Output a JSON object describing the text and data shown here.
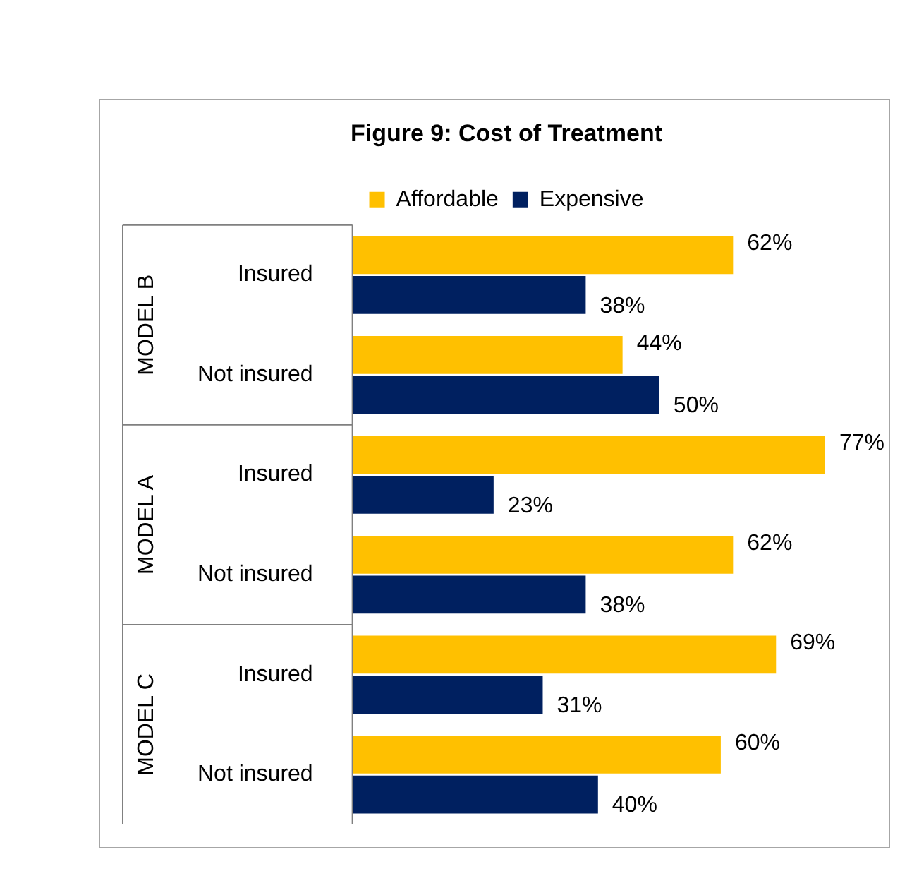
{
  "chart_data": {
    "type": "bar",
    "orientation": "horizontal",
    "title": "Figure 9: Cost of Treatment",
    "categories": [
      "Insured",
      "Not insured",
      "Insured",
      "Not insured",
      "Insured",
      "Not insured"
    ],
    "series": [
      {
        "name": "Affordable",
        "color": "#ffc000",
        "values": [
          62,
          44,
          77,
          62,
          69,
          60
        ],
        "value_labels": [
          "62%",
          "44%",
          "77%",
          "62%",
          "69%",
          "60%"
        ]
      },
      {
        "name": "Expensive",
        "color": "#002060",
        "values": [
          38,
          50,
          23,
          38,
          31,
          40
        ],
        "value_labels": [
          "38%",
          "50%",
          "23%",
          "38%",
          "31%",
          "40%"
        ]
      }
    ],
    "annotations": [
      "MODEL B",
      "MODEL A",
      "MODEL C"
    ],
    "legend": "top"
  }
}
